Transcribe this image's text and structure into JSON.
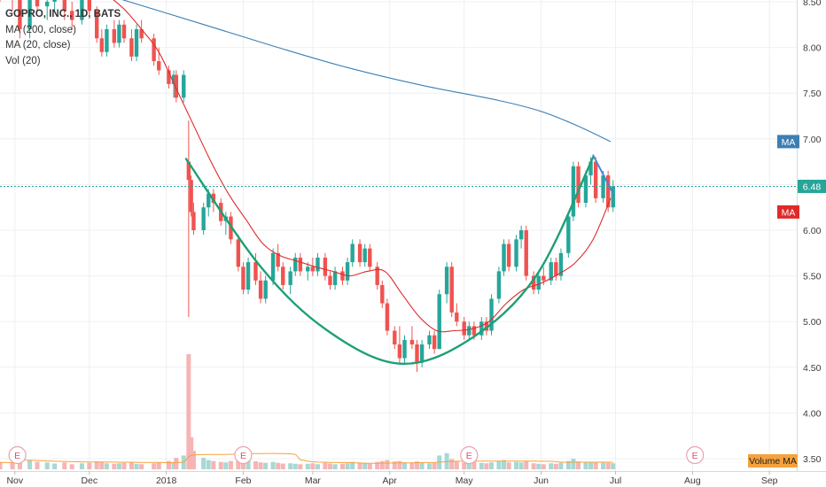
{
  "legend": {
    "title": "GOPRO, INC., 1D, BATS",
    "ma200": "MA (200, close)",
    "ma20": "MA (20, close)",
    "vol": "Vol (20)"
  },
  "price_tags": {
    "ma200": {
      "label": "MA",
      "color": "#3d7fb3"
    },
    "last": {
      "label": "6.48",
      "value": 6.48,
      "color": "#26a69a"
    },
    "ma20": {
      "label": "MA",
      "color": "#e02a2a"
    },
    "volume_ma": {
      "label": "Volume MA",
      "color": "#f6a23c"
    }
  },
  "earnings_label": "E",
  "chart_data": {
    "type": "candlestick",
    "title": "GOPRO, INC., 1D, BATS",
    "y_ticks": [
      "3.50",
      "4.00",
      "4.50",
      "5.00",
      "5.50",
      "6.00",
      "6.50",
      "7.00",
      "7.50",
      "8.00",
      "8.50"
    ],
    "y_range": [
      3.45,
      8.55
    ],
    "x_ticks": [
      "Nov",
      "Dec",
      "2018",
      "Feb",
      "Mar",
      "Apr",
      "May",
      "Jun",
      "Jul",
      "Aug",
      "Sep"
    ],
    "x_range": [
      "2017-10-26",
      "2018-09-12"
    ],
    "earnings_dates": [
      "2017-11-02",
      "2018-02-01",
      "2018-05-03",
      "2018-08-02"
    ],
    "last_price": 6.48,
    "colors": {
      "up": "#26a69a",
      "down": "#ef5350",
      "ma20": "#e02a2a",
      "ma200": "#3d7fb3",
      "pattern": "#1e9f75",
      "trend": "#4a86d6",
      "grid": "#eef0f3",
      "volume_ma": "#f6a23c"
    },
    "ma200": {
      "name": "MA (200, close)",
      "points": [
        [
          "2017-12-05",
          8.6
        ],
        [
          "2018-01-15",
          8.26
        ],
        [
          "2018-02-15",
          8.0
        ],
        [
          "2018-03-15",
          7.78
        ],
        [
          "2018-04-15",
          7.58
        ],
        [
          "2018-05-15",
          7.42
        ],
        [
          "2018-06-01",
          7.3
        ],
        [
          "2018-06-15",
          7.15
        ],
        [
          "2018-06-29",
          6.97
        ]
      ]
    },
    "ma20": {
      "name": "MA (20, close)",
      "points": [
        [
          "2017-12-08",
          8.58
        ],
        [
          "2017-12-15",
          8.42
        ],
        [
          "2017-12-22",
          8.2
        ],
        [
          "2017-12-29",
          7.95
        ],
        [
          "2018-01-05",
          7.55
        ],
        [
          "2018-01-12",
          7.15
        ],
        [
          "2018-01-19",
          6.75
        ],
        [
          "2018-01-26",
          6.4
        ],
        [
          "2018-02-02",
          6.12
        ],
        [
          "2018-02-09",
          5.85
        ],
        [
          "2018-02-16",
          5.72
        ],
        [
          "2018-02-23",
          5.66
        ],
        [
          "2018-03-02",
          5.6
        ],
        [
          "2018-03-09",
          5.55
        ],
        [
          "2018-03-16",
          5.5
        ],
        [
          "2018-03-23",
          5.55
        ],
        [
          "2018-03-30",
          5.55
        ],
        [
          "2018-04-06",
          5.3
        ],
        [
          "2018-04-13",
          5.05
        ],
        [
          "2018-04-20",
          4.9
        ],
        [
          "2018-04-27",
          4.9
        ],
        [
          "2018-05-04",
          4.92
        ],
        [
          "2018-05-11",
          5.0
        ],
        [
          "2018-05-18",
          5.2
        ],
        [
          "2018-05-25",
          5.35
        ],
        [
          "2018-06-01",
          5.42
        ],
        [
          "2018-06-08",
          5.52
        ],
        [
          "2018-06-15",
          5.65
        ],
        [
          "2018-06-22",
          5.9
        ],
        [
          "2018-06-29",
          6.35
        ]
      ]
    },
    "cup_pattern": {
      "points": [
        [
          "2018-01-09",
          6.78
        ],
        [
          "2018-02-08",
          5.6
        ],
        [
          "2018-03-07",
          4.9
        ],
        [
          "2018-04-05",
          4.54
        ],
        [
          "2018-05-03",
          4.8
        ],
        [
          "2018-05-30",
          5.5
        ],
        [
          "2018-06-22",
          6.8
        ]
      ]
    },
    "handle_line": {
      "points": [
        [
          "2018-06-22",
          6.82
        ],
        [
          "2018-06-30",
          6.4
        ]
      ]
    },
    "candles": [
      [
        "2017-10-26",
        8.7,
        8.85,
        8.5,
        8.6
      ],
      [
        "2017-10-31",
        8.6,
        8.75,
        8.4,
        8.55
      ],
      [
        "2017-11-03",
        8.55,
        8.6,
        8.1,
        8.2
      ],
      [
        "2017-11-07",
        8.2,
        8.7,
        8.1,
        8.6
      ],
      [
        "2017-11-10",
        8.6,
        8.8,
        8.4,
        8.45
      ],
      [
        "2017-11-14",
        8.45,
        8.6,
        8.3,
        8.5
      ],
      [
        "2017-11-17",
        8.5,
        8.7,
        8.4,
        8.6
      ],
      [
        "2017-11-21",
        8.6,
        8.75,
        8.3,
        8.4
      ],
      [
        "2017-11-24",
        8.4,
        8.5,
        8.2,
        8.3
      ],
      [
        "2017-11-28",
        8.3,
        8.6,
        8.25,
        8.55
      ],
      [
        "2017-12-01",
        8.55,
        8.65,
        8.35,
        8.4
      ],
      [
        "2017-12-04",
        8.4,
        8.45,
        8.05,
        8.1
      ],
      [
        "2017-12-06",
        8.1,
        8.2,
        7.9,
        7.95
      ],
      [
        "2017-12-08",
        7.95,
        8.25,
        7.9,
        8.2
      ],
      [
        "2017-12-11",
        8.2,
        8.3,
        8.0,
        8.05
      ],
      [
        "2017-12-13",
        8.05,
        8.3,
        8.0,
        8.25
      ],
      [
        "2017-12-15",
        8.25,
        8.3,
        8.05,
        8.1
      ],
      [
        "2017-12-18",
        8.1,
        8.2,
        7.85,
        7.9
      ],
      [
        "2017-12-20",
        7.9,
        8.25,
        7.85,
        8.2
      ],
      [
        "2017-12-22",
        8.2,
        8.3,
        8.05,
        8.1
      ],
      [
        "2017-12-27",
        8.1,
        8.15,
        7.8,
        7.85
      ],
      [
        "2017-12-29",
        7.85,
        8.0,
        7.7,
        7.75
      ],
      [
        "2018-01-02",
        7.75,
        7.8,
        7.55,
        7.6
      ],
      [
        "2018-01-04",
        7.6,
        7.75,
        7.45,
        7.7
      ],
      [
        "2018-01-05",
        7.7,
        7.75,
        7.4,
        7.45
      ],
      [
        "2018-01-08",
        7.45,
        7.75,
        7.4,
        7.7
      ],
      [
        "2018-01-10",
        6.75,
        7.2,
        5.05,
        6.55
      ],
      [
        "2018-01-11",
        6.55,
        6.6,
        6.15,
        6.2
      ],
      [
        "2018-01-12",
        6.2,
        6.3,
        5.95,
        6.0
      ],
      [
        "2018-01-16",
        6.0,
        6.3,
        5.95,
        6.25
      ],
      [
        "2018-01-18",
        6.25,
        6.45,
        6.15,
        6.4
      ],
      [
        "2018-01-20",
        6.4,
        6.45,
        6.2,
        6.3
      ],
      [
        "2018-01-23",
        6.3,
        6.35,
        6.05,
        6.1
      ],
      [
        "2018-01-25",
        6.1,
        6.2,
        5.95,
        6.15
      ],
      [
        "2018-01-27",
        6.15,
        6.2,
        5.85,
        5.9
      ],
      [
        "2018-01-30",
        5.9,
        5.95,
        5.55,
        5.6
      ],
      [
        "2018-02-01",
        5.6,
        5.65,
        5.3,
        5.35
      ],
      [
        "2018-02-03",
        5.35,
        5.7,
        5.3,
        5.65
      ],
      [
        "2018-02-06",
        5.65,
        5.75,
        5.4,
        5.45
      ],
      [
        "2018-02-08",
        5.45,
        5.55,
        5.2,
        5.25
      ],
      [
        "2018-02-10",
        5.25,
        5.5,
        5.2,
        5.45
      ],
      [
        "2018-02-13",
        5.45,
        5.8,
        5.4,
        5.75
      ],
      [
        "2018-02-15",
        5.75,
        5.85,
        5.55,
        5.6
      ],
      [
        "2018-02-17",
        5.6,
        5.65,
        5.35,
        5.4
      ],
      [
        "2018-02-20",
        5.4,
        5.6,
        5.3,
        5.55
      ],
      [
        "2018-02-22",
        5.55,
        5.75,
        5.5,
        5.7
      ],
      [
        "2018-02-24",
        5.7,
        5.75,
        5.5,
        5.55
      ],
      [
        "2018-02-27",
        5.55,
        5.65,
        5.45,
        5.6
      ],
      [
        "2018-03-01",
        5.6,
        5.7,
        5.5,
        5.55
      ],
      [
        "2018-03-03",
        5.55,
        5.75,
        5.5,
        5.7
      ],
      [
        "2018-03-06",
        5.7,
        5.75,
        5.45,
        5.5
      ],
      [
        "2018-03-08",
        5.5,
        5.55,
        5.35,
        5.4
      ],
      [
        "2018-03-10",
        5.4,
        5.6,
        5.35,
        5.55
      ],
      [
        "2018-03-13",
        5.55,
        5.6,
        5.4,
        5.45
      ],
      [
        "2018-03-15",
        5.45,
        5.7,
        5.4,
        5.65
      ],
      [
        "2018-03-17",
        5.65,
        5.9,
        5.6,
        5.85
      ],
      [
        "2018-03-20",
        5.85,
        5.9,
        5.6,
        5.65
      ],
      [
        "2018-03-22",
        5.65,
        5.85,
        5.6,
        5.8
      ],
      [
        "2018-03-24",
        5.8,
        5.85,
        5.55,
        5.6
      ],
      [
        "2018-03-27",
        5.6,
        5.65,
        5.35,
        5.4
      ],
      [
        "2018-03-29",
        5.4,
        5.45,
        5.15,
        5.2
      ],
      [
        "2018-03-31",
        5.2,
        5.25,
        4.85,
        4.9
      ],
      [
        "2018-04-03",
        4.9,
        4.95,
        4.7,
        4.75
      ],
      [
        "2018-04-05",
        4.75,
        4.95,
        4.55,
        4.6
      ],
      [
        "2018-04-07",
        4.6,
        4.85,
        4.55,
        4.8
      ],
      [
        "2018-04-10",
        4.8,
        4.95,
        4.7,
        4.75
      ],
      [
        "2018-04-12",
        4.75,
        4.8,
        4.45,
        4.55
      ],
      [
        "2018-04-14",
        4.55,
        4.8,
        4.5,
        4.75
      ],
      [
        "2018-04-17",
        4.75,
        4.9,
        4.7,
        4.85
      ],
      [
        "2018-04-19",
        4.85,
        4.9,
        4.65,
        4.7
      ],
      [
        "2018-04-21",
        4.7,
        5.35,
        4.7,
        5.3
      ],
      [
        "2018-04-24",
        5.3,
        5.65,
        5.2,
        5.6
      ],
      [
        "2018-04-26",
        5.6,
        5.65,
        5.05,
        5.1
      ],
      [
        "2018-04-28",
        5.1,
        5.2,
        4.95,
        5.0
      ],
      [
        "2018-05-01",
        5.0,
        5.05,
        4.8,
        4.85
      ],
      [
        "2018-05-03",
        4.85,
        5.0,
        4.8,
        4.95
      ],
      [
        "2018-05-05",
        4.95,
        5.0,
        4.8,
        4.85
      ],
      [
        "2018-05-08",
        4.85,
        5.05,
        4.8,
        5.0
      ],
      [
        "2018-05-10",
        5.0,
        5.05,
        4.85,
        4.9
      ],
      [
        "2018-05-12",
        4.9,
        5.3,
        4.85,
        5.25
      ],
      [
        "2018-05-15",
        5.25,
        5.6,
        5.2,
        5.55
      ],
      [
        "2018-05-17",
        5.55,
        5.9,
        5.5,
        5.85
      ],
      [
        "2018-05-19",
        5.85,
        5.9,
        5.55,
        5.6
      ],
      [
        "2018-05-22",
        5.6,
        5.95,
        5.55,
        5.9
      ],
      [
        "2018-05-24",
        5.9,
        6.05,
        5.8,
        6.0
      ],
      [
        "2018-05-26",
        6.0,
        6.05,
        5.45,
        5.5
      ],
      [
        "2018-05-29",
        5.5,
        5.55,
        5.3,
        5.35
      ],
      [
        "2018-05-31",
        5.35,
        5.55,
        5.3,
        5.5
      ],
      [
        "2018-06-02",
        5.5,
        5.6,
        5.4,
        5.45
      ],
      [
        "2018-06-05",
        5.45,
        5.7,
        5.4,
        5.65
      ],
      [
        "2018-06-07",
        5.65,
        5.7,
        5.45,
        5.5
      ],
      [
        "2018-06-09",
        5.5,
        5.8,
        5.45,
        5.75
      ],
      [
        "2018-06-12",
        5.75,
        6.2,
        5.7,
        6.15
      ],
      [
        "2018-06-14",
        6.15,
        6.75,
        6.1,
        6.7
      ],
      [
        "2018-06-16",
        6.7,
        6.75,
        6.25,
        6.3
      ],
      [
        "2018-06-19",
        6.3,
        6.65,
        6.25,
        6.6
      ],
      [
        "2018-06-21",
        6.6,
        6.8,
        6.5,
        6.75
      ],
      [
        "2018-06-23",
        6.75,
        6.8,
        6.3,
        6.35
      ],
      [
        "2018-06-26",
        6.35,
        6.65,
        6.3,
        6.6
      ],
      [
        "2018-06-28",
        6.6,
        6.65,
        6.2,
        6.25
      ],
      [
        "2018-06-30",
        6.25,
        6.55,
        6.2,
        6.48
      ]
    ],
    "volume": [
      [
        "2017-10-26",
        3.0
      ],
      [
        "2017-10-31",
        2.8
      ],
      [
        "2017-11-03",
        6.0
      ],
      [
        "2017-11-07",
        4.0
      ],
      [
        "2017-11-10",
        3.2
      ],
      [
        "2017-11-14",
        3.0
      ],
      [
        "2017-11-17",
        2.5
      ],
      [
        "2017-11-21",
        3.0
      ],
      [
        "2017-11-24",
        2.2
      ],
      [
        "2017-11-28",
        2.6
      ],
      [
        "2017-12-01",
        2.8
      ],
      [
        "2017-12-04",
        3.4
      ],
      [
        "2017-12-06",
        3.2
      ],
      [
        "2017-12-08",
        2.6
      ],
      [
        "2017-12-11",
        2.4
      ],
      [
        "2017-12-13",
        2.6
      ],
      [
        "2017-12-15",
        2.8
      ],
      [
        "2017-12-18",
        3.0
      ],
      [
        "2017-12-20",
        2.4
      ],
      [
        "2017-12-22",
        2.2
      ],
      [
        "2017-12-27",
        2.6
      ],
      [
        "2017-12-29",
        3.0
      ],
      [
        "2018-01-02",
        3.6
      ],
      [
        "2018-01-04",
        3.2
      ],
      [
        "2018-01-05",
        5.0
      ],
      [
        "2018-01-08",
        6.0
      ],
      [
        "2018-01-10",
        50.0
      ],
      [
        "2018-01-11",
        14.0
      ],
      [
        "2018-01-12",
        8.0
      ],
      [
        "2018-01-16",
        5.0
      ],
      [
        "2018-01-18",
        4.0
      ],
      [
        "2018-01-20",
        3.6
      ],
      [
        "2018-01-23",
        3.2
      ],
      [
        "2018-01-25",
        3.0
      ],
      [
        "2018-01-27",
        3.6
      ],
      [
        "2018-01-30",
        4.0
      ],
      [
        "2018-02-01",
        5.0
      ],
      [
        "2018-02-03",
        4.0
      ],
      [
        "2018-02-06",
        3.5
      ],
      [
        "2018-02-08",
        3.0
      ],
      [
        "2018-02-10",
        2.8
      ],
      [
        "2018-02-13",
        3.2
      ],
      [
        "2018-02-15",
        2.8
      ],
      [
        "2018-02-17",
        2.5
      ],
      [
        "2018-02-20",
        2.6
      ],
      [
        "2018-02-22",
        2.4
      ],
      [
        "2018-02-24",
        2.2
      ],
      [
        "2018-02-27",
        2.4
      ],
      [
        "2018-03-01",
        2.6
      ],
      [
        "2018-03-03",
        2.2
      ],
      [
        "2018-03-06",
        2.8
      ],
      [
        "2018-03-08",
        2.5
      ],
      [
        "2018-03-10",
        2.2
      ],
      [
        "2018-03-13",
        2.4
      ],
      [
        "2018-03-15",
        2.6
      ],
      [
        "2018-03-17",
        3.2
      ],
      [
        "2018-03-20",
        2.8
      ],
      [
        "2018-03-22",
        2.5
      ],
      [
        "2018-03-24",
        2.4
      ],
      [
        "2018-03-27",
        3.2
      ],
      [
        "2018-03-29",
        3.6
      ],
      [
        "2018-03-31",
        4.0
      ],
      [
        "2018-04-03",
        3.4
      ],
      [
        "2018-04-05",
        3.6
      ],
      [
        "2018-04-07",
        3.0
      ],
      [
        "2018-04-10",
        2.8
      ],
      [
        "2018-04-12",
        3.4
      ],
      [
        "2018-04-14",
        3.0
      ],
      [
        "2018-04-17",
        2.6
      ],
      [
        "2018-04-19",
        2.8
      ],
      [
        "2018-04-21",
        6.0
      ],
      [
        "2018-04-24",
        7.0
      ],
      [
        "2018-04-26",
        4.4
      ],
      [
        "2018-04-28",
        3.4
      ],
      [
        "2018-05-01",
        3.0
      ],
      [
        "2018-05-03",
        4.0
      ],
      [
        "2018-05-05",
        3.2
      ],
      [
        "2018-05-08",
        2.8
      ],
      [
        "2018-05-10",
        2.6
      ],
      [
        "2018-05-12",
        3.0
      ],
      [
        "2018-05-15",
        3.6
      ],
      [
        "2018-05-17",
        4.0
      ],
      [
        "2018-05-19",
        3.0
      ],
      [
        "2018-05-22",
        3.2
      ],
      [
        "2018-05-24",
        3.0
      ],
      [
        "2018-05-26",
        3.6
      ],
      [
        "2018-05-29",
        2.6
      ],
      [
        "2018-05-31",
        2.4
      ],
      [
        "2018-06-02",
        2.2
      ],
      [
        "2018-06-05",
        2.6
      ],
      [
        "2018-06-07",
        2.4
      ],
      [
        "2018-06-09",
        2.8
      ],
      [
        "2018-06-12",
        3.6
      ],
      [
        "2018-06-14",
        4.6
      ],
      [
        "2018-06-16",
        3.4
      ],
      [
        "2018-06-19",
        3.0
      ],
      [
        "2018-06-21",
        3.2
      ],
      [
        "2018-06-23",
        3.0
      ],
      [
        "2018-06-26",
        2.8
      ],
      [
        "2018-06-28",
        2.8
      ],
      [
        "2018-06-30",
        2.6
      ]
    ]
  }
}
